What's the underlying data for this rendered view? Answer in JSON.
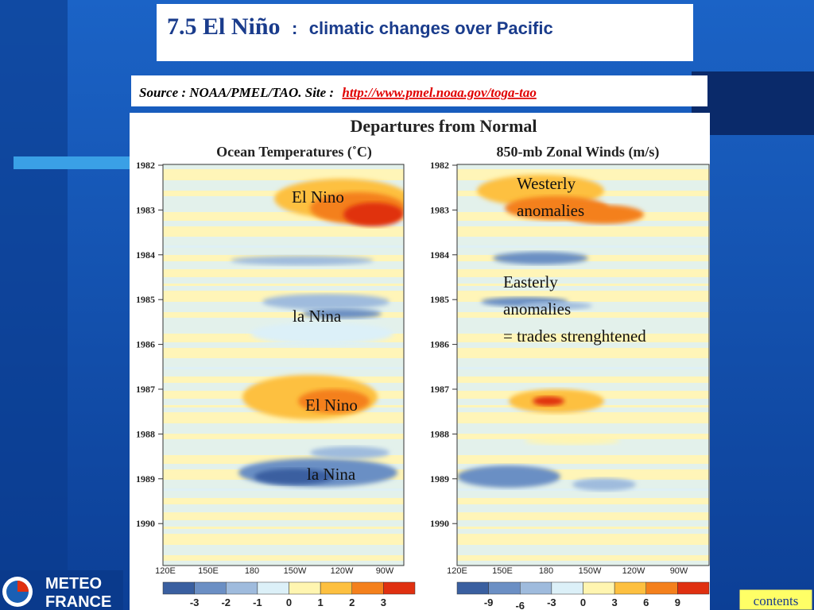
{
  "title": {
    "main": "7.5 El Niño",
    "separator": ":",
    "sub": "climatic changes over Pacific"
  },
  "source": {
    "text": "Source : NOAA/PMEL/TAO. Site :",
    "link": "http://www.pmel.noaa.gov/toga-tao"
  },
  "figure": {
    "title": "Departures from Normal",
    "years": [
      1982,
      1983,
      1984,
      1985,
      1986,
      1987,
      1988,
      1989,
      1990
    ],
    "panels": [
      {
        "title": "Ocean Temperatures (˚C)",
        "x_labels": [
          "120E",
          "150E",
          "180",
          "150W",
          "120W",
          "90W"
        ],
        "colorbar": [
          -3,
          -2,
          -1,
          0,
          1,
          2,
          3
        ],
        "annotations": [
          [
            "El Nino"
          ],
          [
            "la Nina"
          ],
          [
            "El Nino"
          ],
          [
            "la Nina"
          ]
        ]
      },
      {
        "title": "850-mb Zonal Winds (m/s)",
        "x_labels": [
          "120E",
          "150E",
          "180",
          "150W",
          "120W",
          "90W"
        ],
        "colorbar": [
          -9,
          -6,
          -3,
          0,
          3,
          6,
          9
        ],
        "annotations": [
          [
            "Westerly",
            "anomalies"
          ],
          [
            "Easterly",
            "anomalies",
            "= trades strenghtened"
          ]
        ]
      }
    ]
  },
  "logo": {
    "line1": "METEO",
    "line2": "FRANCE"
  },
  "nav": {
    "contents": "contents"
  }
}
